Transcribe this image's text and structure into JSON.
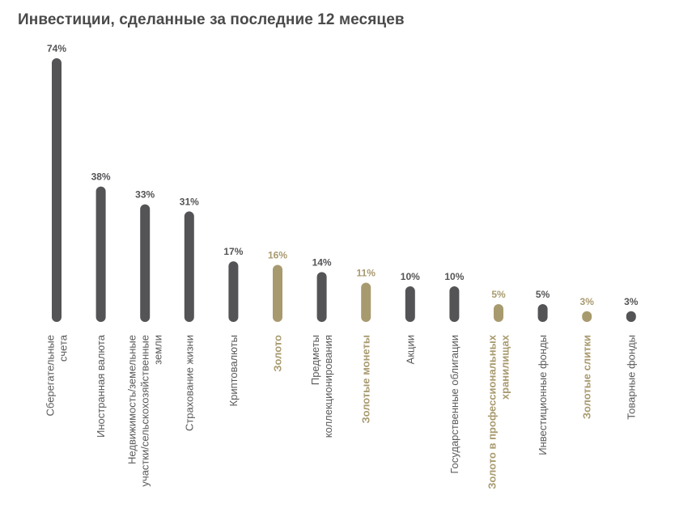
{
  "chart_data": {
    "type": "bar",
    "title": "Инвестиции, сделанные за последние 12 месяцев",
    "unit": "%",
    "ylim": [
      0,
      74
    ],
    "grid": false,
    "colors": {
      "default": "#545457",
      "highlight": "#a89a6f"
    },
    "categories": [
      [
        "Сберегательные",
        "счета"
      ],
      [
        "Иностранная валюта"
      ],
      [
        "Недвижимость/земельные",
        "участки/сельскохозяйственные",
        "земли"
      ],
      [
        "Страхование жизни"
      ],
      [
        "Криптовалюты"
      ],
      [
        "Золото"
      ],
      [
        "Предметы",
        "коллекционирования"
      ],
      [
        "Золотые монеты"
      ],
      [
        "Акции"
      ],
      [
        "Государственные облигации"
      ],
      [
        "Золото в профессиональных",
        "хранилищах"
      ],
      [
        "Инвестиционные фонды"
      ],
      [
        "Золотые слитки"
      ],
      [
        "Товарные фонды"
      ]
    ],
    "values": [
      74,
      38,
      33,
      31,
      17,
      16,
      14,
      11,
      10,
      10,
      5,
      5,
      3,
      3
    ],
    "highlighted": [
      false,
      false,
      false,
      false,
      false,
      true,
      false,
      true,
      false,
      false,
      true,
      false,
      true,
      false
    ]
  }
}
